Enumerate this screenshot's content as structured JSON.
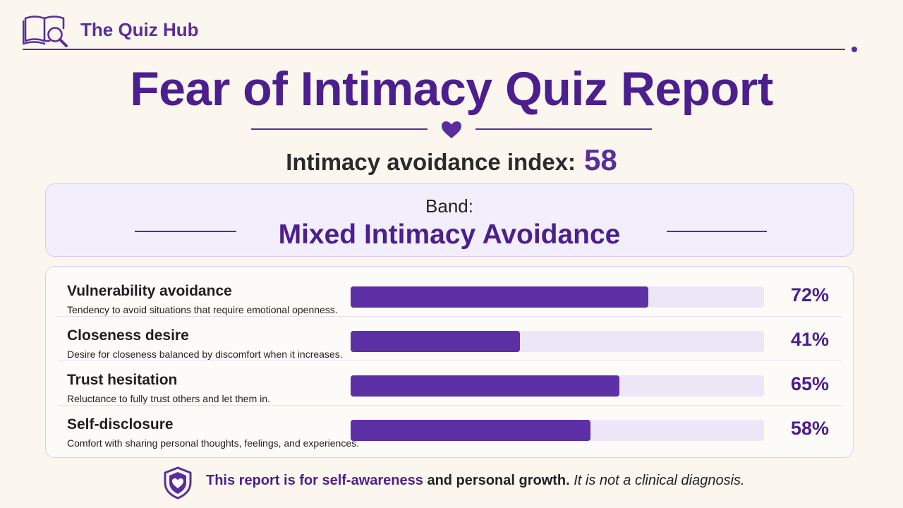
{
  "brand": {
    "name": "The Quiz Hub",
    "logo_icon": "book-magnifier-icon"
  },
  "report": {
    "title": "Fear of Intimacy Quiz Report",
    "divider_icon": "heart-icon",
    "index_label": "Intimacy avoidance index:",
    "index_value": "58",
    "band_label": "Band:",
    "band_value": "Mixed Intimacy Avoidance"
  },
  "dimensions": [
    {
      "name": "Vulnerability avoidance",
      "description": "Tendency to avoid situations that require emotional openness.",
      "percent": 72,
      "percent_label": "72%"
    },
    {
      "name": "Closeness desire",
      "description": "Desire for closeness balanced by discomfort when it increases.",
      "percent": 41,
      "percent_label": "41%"
    },
    {
      "name": "Trust hesitation",
      "description": "Reluctance to fully trust others and let them in.",
      "percent": 65,
      "percent_label": "65%"
    },
    {
      "name": "Self-disclosure",
      "description": "Comfort with sharing personal thoughts, feelings, and experiences.",
      "percent": 58,
      "percent_label": "58%"
    }
  ],
  "footer": {
    "icon": "shield-heart-icon",
    "highlight": "This report is for self-awareness",
    "middle": " and personal growth.",
    "italic": " It is not a clinical diagnosis."
  },
  "colors": {
    "accent": "#5a2d9c",
    "title": "#4b1f8e",
    "bar_fill": "#5e30a6",
    "bar_track": "#ede6f7",
    "background": "#fbf7ef"
  }
}
